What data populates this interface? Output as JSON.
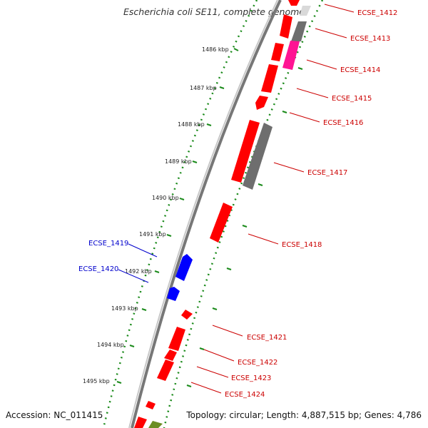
{
  "title": "Escherichia coli SE11, complete genome",
  "accession": "Accession: NC_011415",
  "topology": "Topology: circular; Length: 4,887,515 bp; Genes: 4,786",
  "colors": {
    "forward_gene": "#ff0000",
    "reverse_gene_highlight": "#0000ff",
    "pseudo_gene": "#6e6e6e",
    "pink_gene": "#ff1493",
    "olive_gene": "#6b8e23",
    "backbone": "#808080",
    "tick": "#1a8a1a",
    "label_forward": "#cc0000",
    "label_reverse": "#0000cc"
  },
  "kbp_ticks": [
    "1486 kbp",
    "1487 kbp",
    "1488 kbp",
    "1489 kbp",
    "1490 kbp",
    "1491 kbp",
    "1492 kbp",
    "1493 kbp",
    "1494 kbp",
    "1495 kbp"
  ],
  "gene_labels": [
    {
      "text": "ECSE_1412",
      "strand": "forward"
    },
    {
      "text": "ECSE_1413",
      "strand": "forward"
    },
    {
      "text": "ECSE_1414",
      "strand": "forward"
    },
    {
      "text": "ECSE_1415",
      "strand": "forward"
    },
    {
      "text": "ECSE_1416",
      "strand": "forward"
    },
    {
      "text": "ECSE_1417",
      "strand": "forward"
    },
    {
      "text": "ECSE_1418",
      "strand": "forward"
    },
    {
      "text": "ECSE_1419",
      "strand": "reverse"
    },
    {
      "text": "ECSE_1420",
      "strand": "reverse"
    },
    {
      "text": "ECSE_1421",
      "strand": "forward"
    },
    {
      "text": "ECSE_1422",
      "strand": "forward"
    },
    {
      "text": "ECSE_1423",
      "strand": "forward"
    },
    {
      "text": "ECSE_1424",
      "strand": "forward"
    }
  ]
}
